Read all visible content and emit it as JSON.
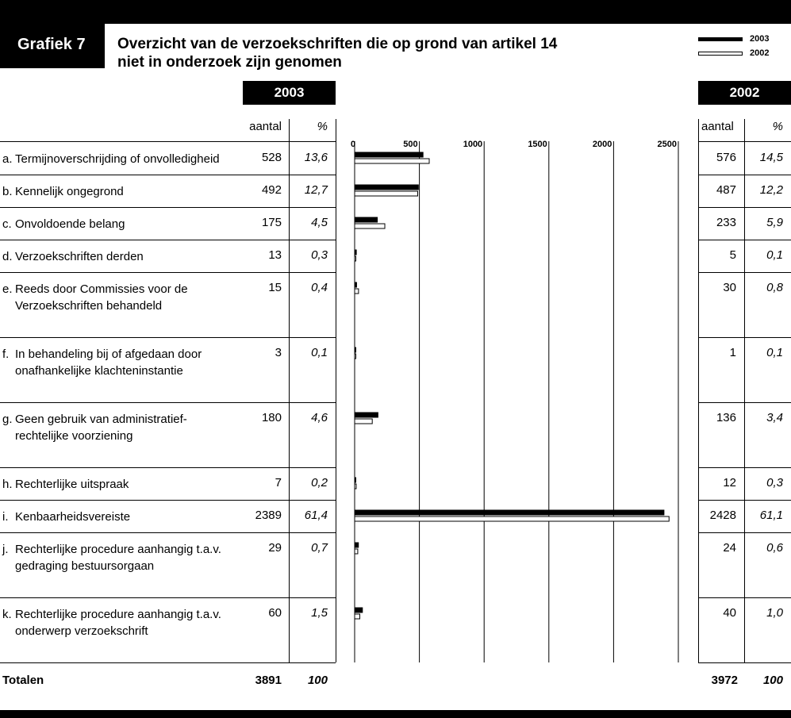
{
  "header": {
    "badge": "Grafiek 7",
    "title_line1": "Overzicht van de verzoekschriften die op grond van artikel 14",
    "title_line2": "niet in onderzoek zijn genomen"
  },
  "legend": [
    {
      "label": "2003",
      "fill": "#000000"
    },
    {
      "label": "2002",
      "fill": "#ffffff"
    }
  ],
  "left_table": {
    "year": "2003",
    "col_count": "aantal",
    "col_pct": "%"
  },
  "right_table": {
    "year": "2002",
    "col_count": "aantal",
    "col_pct": "%"
  },
  "rows": [
    {
      "letter": "a.",
      "label": "Termijnoverschrijding of onvolledigheid",
      "c2003": "528",
      "p2003": "13,6",
      "c2002": "576",
      "p2002": "14,5"
    },
    {
      "letter": "b.",
      "label": "Kennelijk ongegrond",
      "c2003": "492",
      "p2003": "12,7",
      "c2002": "487",
      "p2002": "12,2"
    },
    {
      "letter": "c.",
      "label": "Onvoldoende belang",
      "c2003": "175",
      "p2003": "4,5",
      "c2002": "233",
      "p2002": "5,9"
    },
    {
      "letter": "d.",
      "label": "Verzoekschriften derden",
      "c2003": "13",
      "p2003": "0,3",
      "c2002": "5",
      "p2002": "0,1"
    },
    {
      "letter": "e.",
      "label": "Reeds door Commissies voor de Verzoekschriften behandeld",
      "c2003": "15",
      "p2003": "0,4",
      "c2002": "30",
      "p2002": "0,8"
    },
    {
      "letter": "f.",
      "label": "In behandeling bij of afgedaan door onafhankelijke klachteninstantie",
      "c2003": "3",
      "p2003": "0,1",
      "c2002": "1",
      "p2002": "0,1"
    },
    {
      "letter": "g.",
      "label": "Geen gebruik van administratief-rechtelijke voorziening",
      "c2003": "180",
      "p2003": "4,6",
      "c2002": "136",
      "p2002": "3,4"
    },
    {
      "letter": "h.",
      "label": "Rechterlijke uitspraak",
      "c2003": "7",
      "p2003": "0,2",
      "c2002": "12",
      "p2002": "0,3"
    },
    {
      "letter": "i.",
      "label": "Kenbaarheidsvereiste",
      "c2003": "2389",
      "p2003": "61,4",
      "c2002": "2428",
      "p2002": "61,1"
    },
    {
      "letter": "j.",
      "label": "Rechterlijke procedure aanhangig t.a.v. gedraging bestuursorgaan",
      "c2003": "29",
      "p2003": "0,7",
      "c2002": "24",
      "p2002": "0,6"
    },
    {
      "letter": "k.",
      "label": "Rechterlijke procedure aanhangig t.a.v. onderwerp verzoekschrift",
      "c2003": "60",
      "p2003": "1,5",
      "c2002": "40",
      "p2002": "1,0"
    }
  ],
  "totals": {
    "label": "Totalen",
    "c2003": "3891",
    "p2003": "100",
    "c2002": "3972",
    "p2002": "100"
  },
  "chart_data": {
    "type": "bar",
    "orientation": "horizontal",
    "categories": [
      "a.",
      "b.",
      "c.",
      "d.",
      "e.",
      "f.",
      "g.",
      "h.",
      "i.",
      "j.",
      "k."
    ],
    "series": [
      {
        "name": "2003",
        "values": [
          528,
          492,
          175,
          13,
          15,
          3,
          180,
          7,
          2389,
          29,
          60
        ]
      },
      {
        "name": "2002",
        "values": [
          576,
          487,
          233,
          5,
          30,
          1,
          136,
          12,
          2428,
          24,
          40
        ]
      }
    ],
    "xticks": [
      "0",
      "500",
      "1000",
      "1500",
      "2000",
      "2500"
    ],
    "xlim": [
      0,
      2500
    ],
    "grid": true,
    "legend": "top-right"
  }
}
